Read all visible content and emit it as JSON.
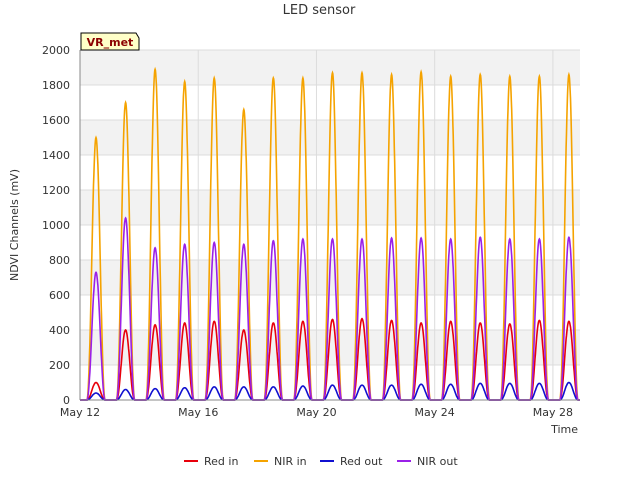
{
  "chart_data": {
    "type": "line",
    "title": "LED sensor",
    "xlabel": "Time",
    "ylabel": "NDVI Channels (mV)",
    "site_badge": "VR_met",
    "ylim": [
      0,
      2000
    ],
    "xlim": [
      "2017-05-12",
      "2017-05-28 22:00"
    ],
    "yticks": [
      0,
      200,
      400,
      600,
      800,
      1000,
      1200,
      1400,
      1600,
      1800,
      2000
    ],
    "xticks": [
      {
        "date": "2017-05-12",
        "label": "May 12"
      },
      {
        "date": "2017-05-16",
        "label": "May 16"
      },
      {
        "date": "2017-05-20",
        "label": "May 20"
      },
      {
        "date": "2017-05-24",
        "label": "May 24"
      },
      {
        "date": "2017-05-28",
        "label": "May 28"
      }
    ],
    "grid": true,
    "legend_position": "bottom",
    "days": [
      "2017-05-12",
      "2017-05-13",
      "2017-05-14",
      "2017-05-15",
      "2017-05-16",
      "2017-05-17",
      "2017-05-18",
      "2017-05-19",
      "2017-05-20",
      "2017-05-21",
      "2017-05-22",
      "2017-05-23",
      "2017-05-24",
      "2017-05-25",
      "2017-05-26",
      "2017-05-27",
      "2017-05-28"
    ],
    "daily_peaks_note": "Series are daily diurnal cycles; values are approximate daily peak levels read from the plot (mV). Trough level is 0 at night.",
    "series": [
      {
        "name": "Red in",
        "color": "#e8000b",
        "daily_peak": [
          100,
          400,
          430,
          440,
          450,
          400,
          440,
          450,
          460,
          465,
          455,
          440,
          450,
          440,
          435,
          455,
          450
        ]
      },
      {
        "name": "NIR in",
        "color": "#f5a300",
        "daily_peak": [
          1500,
          1700,
          1890,
          1820,
          1840,
          1660,
          1840,
          1840,
          1870,
          1870,
          1860,
          1875,
          1850,
          1860,
          1850,
          1850,
          1860
        ]
      },
      {
        "name": "Red out",
        "color": "#1010d0",
        "daily_peak": [
          40,
          60,
          65,
          70,
          75,
          75,
          75,
          80,
          85,
          85,
          85,
          90,
          90,
          95,
          95,
          95,
          100
        ]
      },
      {
        "name": "NIR out",
        "color": "#9a20e8",
        "daily_peak": [
          730,
          1040,
          870,
          890,
          900,
          890,
          910,
          920,
          920,
          920,
          925,
          925,
          920,
          930,
          920,
          920,
          930
        ]
      }
    ]
  }
}
